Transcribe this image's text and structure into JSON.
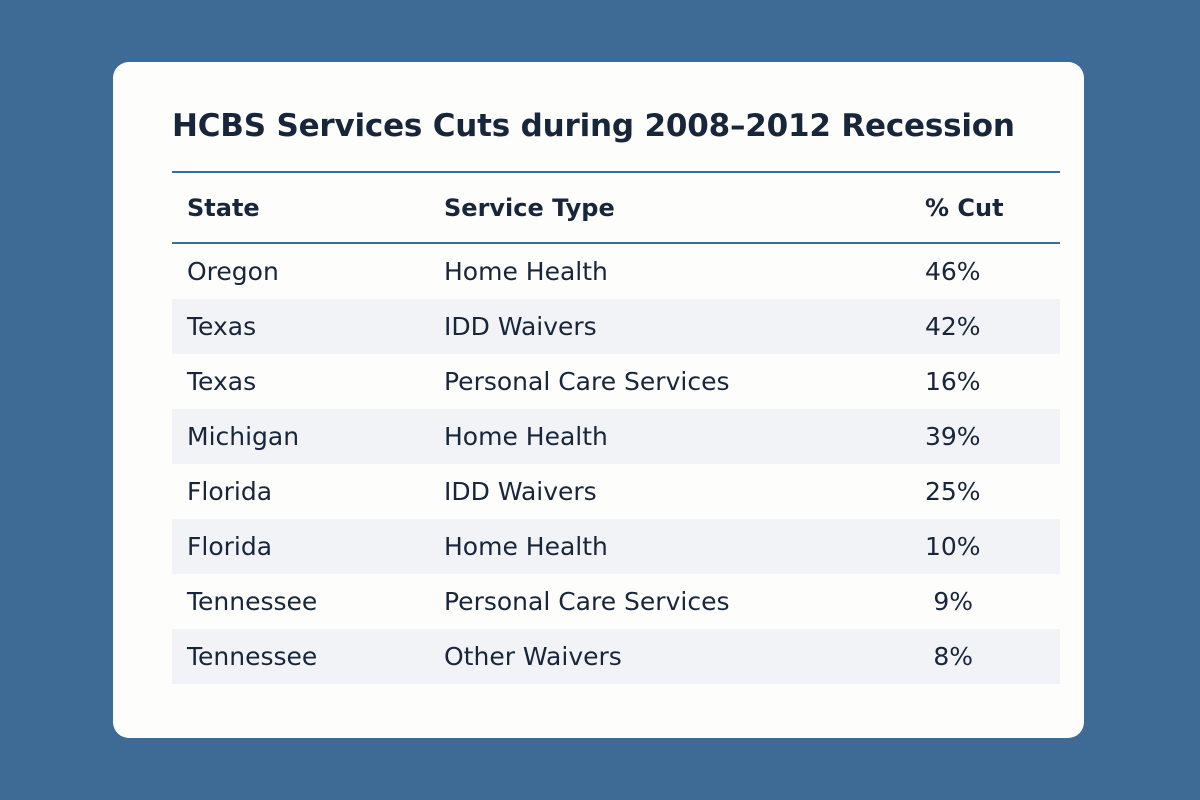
{
  "title": "HCBS Services Cuts during 2008–2012 Recession",
  "table": {
    "headers": [
      "State",
      "Service Type",
      "% Cut"
    ],
    "rows": [
      [
        "Oregon",
        "Home Health",
        "46%"
      ],
      [
        "Texas",
        "IDD Waivers",
        "42%"
      ],
      [
        "Texas",
        "Personal Care Services",
        "16%"
      ],
      [
        "Michigan",
        "Home Health",
        "39%"
      ],
      [
        "Florida",
        "IDD Waivers",
        "25%"
      ],
      [
        "Florida",
        "Home Health",
        "10%"
      ],
      [
        "Tennessee",
        "Personal Care Services",
        "9%"
      ],
      [
        "Tennessee",
        "Other Waivers",
        "8%"
      ]
    ]
  },
  "colors": {
    "background": "#3e6a96",
    "text": "#17263a",
    "stripe": "#f2f3f6"
  }
}
